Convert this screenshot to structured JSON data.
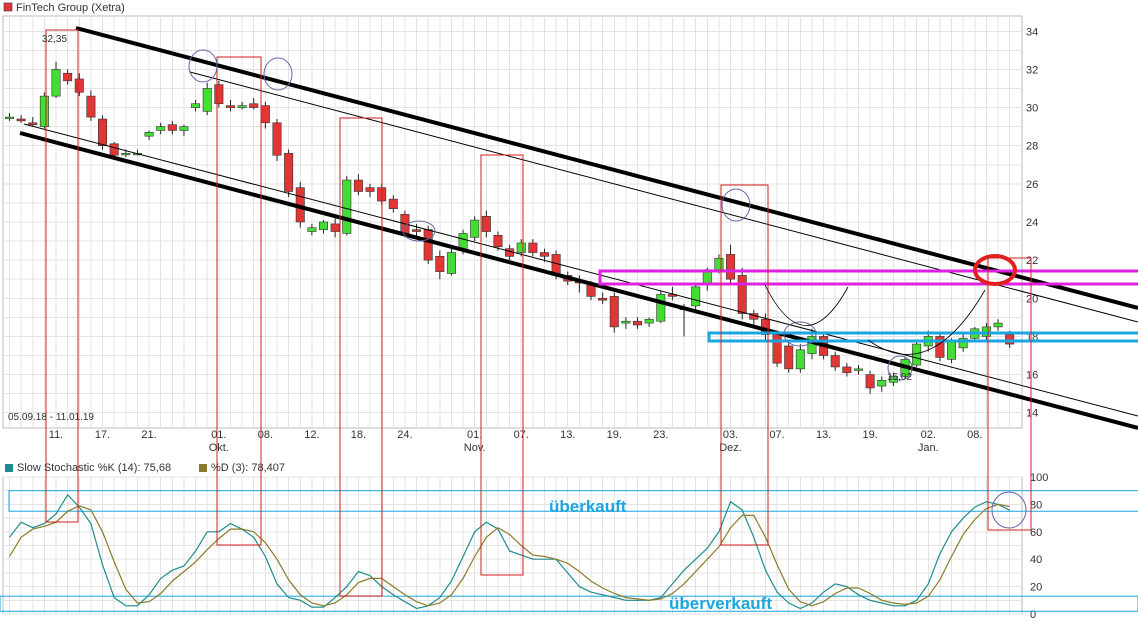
{
  "title": "FinTech Group (Xetra)",
  "date_range": "05.09.18 - 11.01.19",
  "stoch": {
    "k_label": "Slow Stochastic %K (14): 75,68",
    "d_label": "%D (3): 78,407"
  },
  "annotations": {
    "overbought": "überkauft",
    "oversold": "überverkauft",
    "high_value": "32,35",
    "low_value": "15,02"
  },
  "colors": {
    "up": "#44dd33",
    "down": "#e03636",
    "channel": "#000000",
    "resistance_zone": "#e020e0",
    "support_zone": "#1aa6e0",
    "cycle_box": "#d02020",
    "stoch_k": "#1e8c8c",
    "stoch_d": "#8c7a28"
  },
  "chart_data": [
    {
      "type": "candlestick",
      "title": "FinTech Group (Xetra)",
      "y_ticks": [
        14,
        16,
        18,
        20,
        22,
        24,
        26,
        28,
        30,
        32,
        34
      ],
      "ylim": [
        13.2,
        34.8
      ],
      "grid": true,
      "x_ticks": [
        {
          "i": 4,
          "label": "11."
        },
        {
          "i": 8,
          "label": "17."
        },
        {
          "i": 12,
          "label": "21."
        },
        {
          "i": 18,
          "label": "01.",
          "sub": "Okt."
        },
        {
          "i": 22,
          "label": "08."
        },
        {
          "i": 26,
          "label": "12."
        },
        {
          "i": 30,
          "label": "18."
        },
        {
          "i": 34,
          "label": "24."
        },
        {
          "i": 40,
          "label": "01.",
          "sub": "Nov."
        },
        {
          "i": 44,
          "label": "07."
        },
        {
          "i": 48,
          "label": "13."
        },
        {
          "i": 52,
          "label": "19."
        },
        {
          "i": 56,
          "label": "23."
        },
        {
          "i": 62,
          "label": "03.",
          "sub": "Dez."
        },
        {
          "i": 66,
          "label": "07."
        },
        {
          "i": 70,
          "label": "13."
        },
        {
          "i": 74,
          "label": "19."
        },
        {
          "i": 79,
          "label": "02.",
          "sub": "Jan."
        },
        {
          "i": 83,
          "label": "08."
        }
      ],
      "candles": [
        [
          29.5,
          29.7,
          29.3,
          29.5
        ],
        [
          29.4,
          29.6,
          29.2,
          29.3
        ],
        [
          29.2,
          29.5,
          29.0,
          29.1
        ],
        [
          29.0,
          30.8,
          28.9,
          30.6
        ],
        [
          30.6,
          32.4,
          30.5,
          32.0
        ],
        [
          31.8,
          32.0,
          31.2,
          31.4
        ],
        [
          31.5,
          31.8,
          30.6,
          30.8
        ],
        [
          30.6,
          30.9,
          29.3,
          29.5
        ],
        [
          29.4,
          29.6,
          27.8,
          28.0
        ],
        [
          28.1,
          28.2,
          27.3,
          27.5
        ],
        [
          27.6,
          27.8,
          27.4,
          27.6
        ],
        [
          27.6,
          27.8,
          27.5,
          27.6
        ],
        [
          28.5,
          28.8,
          28.3,
          28.7
        ],
        [
          28.8,
          29.2,
          28.6,
          29.0
        ],
        [
          29.1,
          29.3,
          28.6,
          28.8
        ],
        [
          28.8,
          29.1,
          28.5,
          29.0
        ],
        [
          30.0,
          30.4,
          29.8,
          30.2
        ],
        [
          29.8,
          31.3,
          29.6,
          31.0
        ],
        [
          31.2,
          31.4,
          30.0,
          30.2
        ],
        [
          30.1,
          30.4,
          29.8,
          30.0
        ],
        [
          30.0,
          30.3,
          29.9,
          30.1
        ],
        [
          30.2,
          30.5,
          29.9,
          30.0
        ],
        [
          30.1,
          30.3,
          28.9,
          29.2
        ],
        [
          29.2,
          29.4,
          27.2,
          27.5
        ],
        [
          27.6,
          27.8,
          25.3,
          25.6
        ],
        [
          25.8,
          26.1,
          23.7,
          24.0
        ],
        [
          23.5,
          23.9,
          23.3,
          23.7
        ],
        [
          23.6,
          24.1,
          23.4,
          24.0
        ],
        [
          23.9,
          24.2,
          23.2,
          23.5
        ],
        [
          23.4,
          26.4,
          23.3,
          26.2
        ],
        [
          26.2,
          26.5,
          25.4,
          25.6
        ],
        [
          25.8,
          26.0,
          25.3,
          25.6
        ],
        [
          25.8,
          26.0,
          24.9,
          25.1
        ],
        [
          25.2,
          25.4,
          24.5,
          24.7
        ],
        [
          24.4,
          24.6,
          23.2,
          23.4
        ],
        [
          23.6,
          23.9,
          23.2,
          23.5
        ],
        [
          23.6,
          23.8,
          21.8,
          22.0
        ],
        [
          22.2,
          22.5,
          21.0,
          21.4
        ],
        [
          21.3,
          22.6,
          21.2,
          22.4
        ],
        [
          22.5,
          23.6,
          22.3,
          23.4
        ],
        [
          23.2,
          24.3,
          23.0,
          24.1
        ],
        [
          24.3,
          24.6,
          23.2,
          23.5
        ],
        [
          23.3,
          23.5,
          22.5,
          22.7
        ],
        [
          22.6,
          22.8,
          22.0,
          22.2
        ],
        [
          22.4,
          23.1,
          22.2,
          22.9
        ],
        [
          22.9,
          23.1,
          22.2,
          22.4
        ],
        [
          22.4,
          22.6,
          21.9,
          22.2
        ],
        [
          22.3,
          22.5,
          21.0,
          21.2
        ],
        [
          21.2,
          21.4,
          20.7,
          20.9
        ],
        [
          20.9,
          21.2,
          20.3,
          20.8
        ],
        [
          20.7,
          20.9,
          19.9,
          20.1
        ],
        [
          20.0,
          20.3,
          19.7,
          19.9
        ],
        [
          20.1,
          20.3,
          18.2,
          18.5
        ],
        [
          18.7,
          19.0,
          18.4,
          18.8
        ],
        [
          18.8,
          19.0,
          18.4,
          18.6
        ],
        [
          18.7,
          19.0,
          18.5,
          18.9
        ],
        [
          18.8,
          20.4,
          18.7,
          20.2
        ],
        [
          20.2,
          20.6,
          19.9,
          20.1
        ],
        [
          19.5,
          19.7,
          18.0,
          19.4
        ],
        [
          19.6,
          20.7,
          19.4,
          20.6
        ],
        [
          20.7,
          21.6,
          20.4,
          21.5
        ],
        [
          21.5,
          22.3,
          21.3,
          22.1
        ],
        [
          22.3,
          22.8,
          20.8,
          21.0
        ],
        [
          21.2,
          21.6,
          18.9,
          19.2
        ],
        [
          19.2,
          19.4,
          18.6,
          18.9
        ],
        [
          18.9,
          19.2,
          17.8,
          18.1
        ],
        [
          18.1,
          18.3,
          16.4,
          16.6
        ],
        [
          17.5,
          17.8,
          16.1,
          16.3
        ],
        [
          16.3,
          17.6,
          16.1,
          17.3
        ],
        [
          17.1,
          18.4,
          16.8,
          18.0
        ],
        [
          18.0,
          18.2,
          16.8,
          17.0
        ],
        [
          17.0,
          17.2,
          16.2,
          16.4
        ],
        [
          16.4,
          16.6,
          15.9,
          16.1
        ],
        [
          16.3,
          16.5,
          16.0,
          16.3
        ],
        [
          16.0,
          16.2,
          15.0,
          15.3
        ],
        [
          15.4,
          15.9,
          15.1,
          15.7
        ],
        [
          15.6,
          16.1,
          15.4,
          15.9
        ],
        [
          15.9,
          16.9,
          15.8,
          16.8
        ],
        [
          16.5,
          17.7,
          16.4,
          17.6
        ],
        [
          17.5,
          18.3,
          17.2,
          18.0
        ],
        [
          18.0,
          18.2,
          16.7,
          16.9
        ],
        [
          16.8,
          17.9,
          16.6,
          17.8
        ],
        [
          17.4,
          18.1,
          17.2,
          17.9
        ],
        [
          17.9,
          18.5,
          17.7,
          18.4
        ],
        [
          18.0,
          18.7,
          17.8,
          18.5
        ],
        [
          18.5,
          18.9,
          18.3,
          18.7
        ],
        [
          18.1,
          18.3,
          17.4,
          17.6
        ]
      ]
    },
    {
      "type": "line",
      "title": "Slow Stochastic",
      "series": [
        {
          "name": "Slow Stochastic %K (14): 75,68",
          "values": [
            56,
            67,
            63,
            66,
            73,
            87,
            78,
            66,
            36,
            12,
            6,
            6,
            14,
            26,
            32,
            35,
            46,
            60,
            60,
            66,
            62,
            56,
            42,
            22,
            12,
            10,
            5,
            5,
            12,
            20,
            31,
            28,
            20,
            14,
            9,
            4,
            6,
            12,
            24,
            42,
            60,
            67,
            62,
            46,
            43,
            40,
            40,
            40,
            30,
            20,
            16,
            14,
            12,
            10,
            10,
            10,
            12,
            22,
            32,
            40,
            48,
            60,
            82,
            76,
            56,
            32,
            16,
            8,
            4,
            8,
            16,
            22,
            20,
            14,
            10,
            8,
            6,
            6,
            10,
            22,
            44,
            60,
            70,
            78,
            82,
            80,
            75.68
          ]
        },
        {
          "name": "%D (3): 78,407",
          "values": [
            42,
            56,
            62,
            64,
            67,
            75,
            79,
            76,
            60,
            38,
            18,
            8,
            9,
            15,
            24,
            31,
            38,
            47,
            55,
            62,
            62,
            60,
            52,
            40,
            25,
            14,
            8,
            6,
            8,
            14,
            23,
            26,
            26,
            20,
            14,
            9,
            6,
            8,
            14,
            26,
            42,
            56,
            63,
            58,
            50,
            43,
            42,
            40,
            37,
            31,
            24,
            19,
            15,
            12,
            11,
            10,
            11,
            15,
            22,
            31,
            40,
            49,
            63,
            72,
            72,
            56,
            36,
            18,
            9,
            6,
            9,
            15,
            19,
            19,
            15,
            10,
            8,
            7,
            8,
            13,
            25,
            42,
            58,
            69,
            77,
            80,
            78.407
          ]
        }
      ],
      "y_ticks": [
        0,
        20,
        40,
        60,
        80,
        100
      ],
      "ylim": [
        0,
        100
      ],
      "zones": {
        "overbought": [
          75,
          90
        ],
        "oversold": [
          2,
          13
        ]
      }
    }
  ]
}
